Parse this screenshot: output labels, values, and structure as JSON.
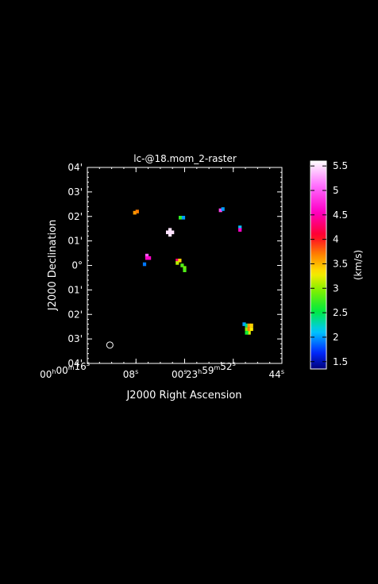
{
  "chart_data": {
    "type": "heatmap",
    "title": "lc-@18.mom_2-raster",
    "xlabel": "J2000 Right Ascension",
    "ylabel": "J2000 Declination",
    "x_ticks": [
      {
        "h": "00",
        "m": "00",
        "s": "16",
        "value": 16
      },
      {
        "s": "08",
        "value": 8
      },
      {
        "s": "00",
        "value": 0
      },
      {
        "h": "23",
        "m": "59",
        "s": "52",
        "value": -8
      },
      {
        "s": "44",
        "value": -16
      }
    ],
    "y_ticks": [
      "04'",
      "03'",
      "02'",
      "01'",
      "0°",
      "01'",
      "02'",
      "03'",
      "04'"
    ],
    "y_tick_values": [
      4,
      3,
      2,
      1,
      0,
      -1,
      -2,
      -3,
      -4
    ],
    "xlim": [
      16,
      -16
    ],
    "ylim": [
      -4,
      4
    ],
    "colorbar": {
      "unit": "(km/s)",
      "ticks": [
        "5.5",
        "5",
        "4.5",
        "4",
        "3.5",
        "3",
        "2.5",
        "2",
        "1.5"
      ],
      "tick_values": [
        5.5,
        5,
        4.5,
        4,
        3.5,
        3,
        2.5,
        2,
        1.5
      ],
      "range": [
        1.35,
        5.6
      ]
    },
    "pixels": [
      {
        "x": 8.2,
        "y": 2.15,
        "v": 3.6
      },
      {
        "x": 7.8,
        "y": 2.2,
        "v": 3.7
      },
      {
        "x": 0.7,
        "y": 1.95,
        "v": 2.7
      },
      {
        "x": 0.2,
        "y": 1.95,
        "v": 2.0
      },
      {
        "x": -5.9,
        "y": 2.25,
        "v": 4.9
      },
      {
        "x": -6.3,
        "y": 2.3,
        "v": 2.0
      },
      {
        "x": -9.1,
        "y": 1.55,
        "v": 2.1
      },
      {
        "x": -9.1,
        "y": 1.45,
        "v": 4.6
      },
      {
        "x": 2.4,
        "y": 1.35,
        "v": 5.5
      },
      {
        "x": 2.4,
        "y": 1.25,
        "v": 5.5
      },
      {
        "x": 2.0,
        "y": 1.35,
        "v": 5.5
      },
      {
        "x": 2.8,
        "y": 1.35,
        "v": 5.5
      },
      {
        "x": 2.4,
        "y": 1.45,
        "v": 5.5
      },
      {
        "x": 6.2,
        "y": 0.4,
        "v": 5.0
      },
      {
        "x": 6.2,
        "y": 0.3,
        "v": 4.6
      },
      {
        "x": 5.8,
        "y": 0.3,
        "v": 4.6
      },
      {
        "x": 6.6,
        "y": 0.05,
        "v": 1.9
      },
      {
        "x": 1.2,
        "y": 0.2,
        "v": 4.3
      },
      {
        "x": 1.2,
        "y": 0.1,
        "v": 3.1
      },
      {
        "x": 0.8,
        "y": 0.2,
        "v": 3.4
      },
      {
        "x": 0.4,
        "y": 0.0,
        "v": 2.8
      },
      {
        "x": 0.0,
        "y": -0.1,
        "v": 2.9
      },
      {
        "x": 0.0,
        "y": -0.2,
        "v": 2.8
      },
      {
        "x": -9.8,
        "y": -2.4,
        "v": 2.0
      },
      {
        "x": -10.2,
        "y": -2.45,
        "v": 2.4
      },
      {
        "x": -10.2,
        "y": -2.6,
        "v": 3.0
      },
      {
        "x": -10.6,
        "y": -2.45,
        "v": 3.6
      },
      {
        "x": -10.6,
        "y": -2.6,
        "v": 3.7
      },
      {
        "x": -11.0,
        "y": -2.45,
        "v": 3.4
      },
      {
        "x": -11.0,
        "y": -2.6,
        "v": 3.3
      },
      {
        "x": -10.6,
        "y": -2.75,
        "v": 3.2
      },
      {
        "x": -10.2,
        "y": -2.75,
        "v": 2.6
      }
    ],
    "beam": {
      "x": 12.3,
      "y": -3.25,
      "r": 0.15
    }
  }
}
